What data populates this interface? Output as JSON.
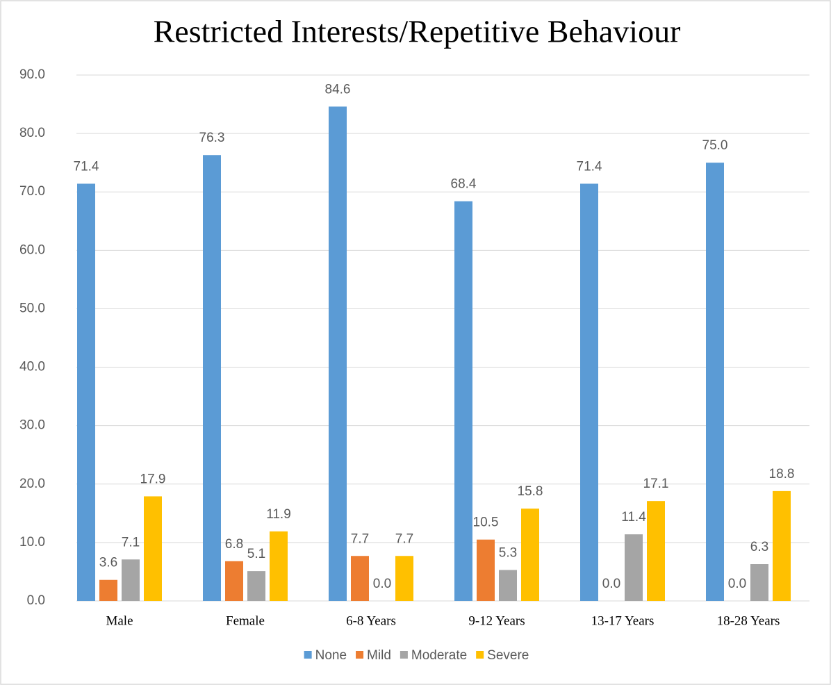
{
  "chart_data": {
    "type": "bar",
    "title": "Restricted Interests/Repetitive Behaviour",
    "categories": [
      "Male",
      "Female",
      "6-8 Years",
      "9-12 Years",
      "13-17 Years",
      "18-28 Years"
    ],
    "series": [
      {
        "name": "None",
        "color": "#5b9bd5",
        "values": [
          71.4,
          76.3,
          84.6,
          68.4,
          71.4,
          75
        ],
        "value_labels": [
          "71.4",
          "76.3",
          "84.6",
          "68.4",
          "71.4",
          "75.0"
        ]
      },
      {
        "name": "Mild",
        "color": "#ed7d31",
        "values": [
          3.6,
          6.8,
          7.7,
          10.5,
          0,
          0
        ],
        "value_labels": [
          "3.6",
          "6.8",
          "7.7",
          "10.5",
          "0.0",
          "0.0"
        ]
      },
      {
        "name": "Moderate",
        "color": "#a5a5a5",
        "values": [
          7.1,
          5.1,
          0,
          5.3,
          11.4,
          6.3
        ],
        "value_labels": [
          "7.1",
          "5.1",
          "0.0",
          "5.3",
          "11.4",
          "6.3"
        ]
      },
      {
        "name": "Severe",
        "color": "#ffc000",
        "values": [
          17.9,
          11.9,
          7.7,
          15.8,
          17.1,
          18.8
        ],
        "value_labels": [
          "17.9",
          "11.9",
          "7.7",
          "15.8",
          "17.1",
          "18.8"
        ]
      }
    ],
    "ylim": [
      0,
      90
    ],
    "yticks": [
      {
        "value": 0,
        "label": "0.0"
      },
      {
        "value": 10,
        "label": "10.0"
      },
      {
        "value": 20,
        "label": "20.0"
      },
      {
        "value": 30,
        "label": "30.0"
      },
      {
        "value": 40,
        "label": "40.0"
      },
      {
        "value": 50,
        "label": "50.0"
      },
      {
        "value": 60,
        "label": "60.0"
      },
      {
        "value": 70,
        "label": "70.0"
      },
      {
        "value": 80,
        "label": "80.0"
      },
      {
        "value": 90,
        "label": "90.0"
      }
    ],
    "grid": true,
    "legend": "bottom"
  }
}
